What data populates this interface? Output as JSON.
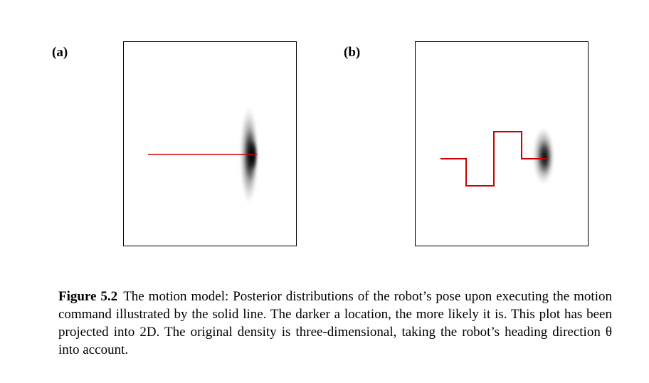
{
  "panels": [
    {
      "label": "(a)"
    },
    {
      "label": "(b)"
    }
  ],
  "caption": {
    "label": "Figure 5.2",
    "text": "The motion model: Posterior distributions of the robot’s pose upon executing the motion command illustrated by the solid line. The darker a location, the more likely it is. This plot has been projected into 2D. The original density is three-dimensional, taking the robot’s heading direction θ into account."
  },
  "colors": {
    "path": "#cc0000",
    "density": "#000000",
    "frame": "#000000"
  }
}
